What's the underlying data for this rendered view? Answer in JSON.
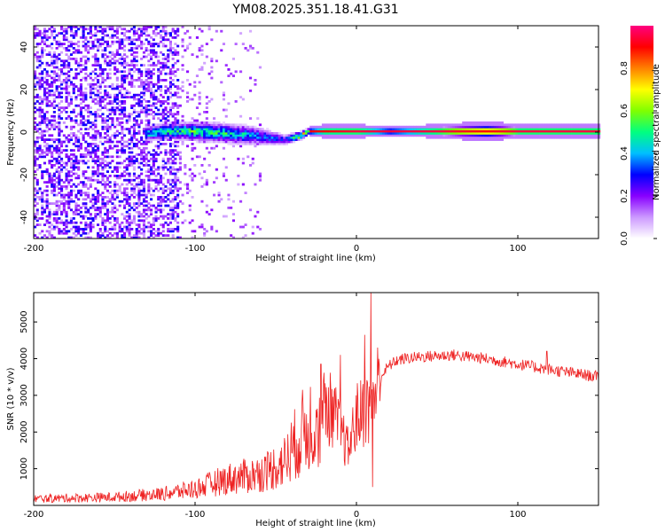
{
  "title": "YM08.2025.351.18.41.G31",
  "chart_data": [
    {
      "type": "heatmap",
      "title": "YM08.2025.351.18.41.G31",
      "xlabel": "Height of straight line (km)",
      "ylabel": "Frequency (Hz)",
      "xlim": [
        -200,
        150
      ],
      "ylim": [
        -50,
        50
      ],
      "xticks": [
        -200,
        -100,
        0,
        100
      ],
      "xtick_labels": [
        "-200",
        "-100",
        "0",
        "100"
      ],
      "yticks": [
        -40,
        -20,
        0,
        20,
        40
      ],
      "ytick_labels": [
        "-40",
        "-20",
        "0",
        "20",
        "40"
      ],
      "colorbar": {
        "label": "Normalized spectral amplitude",
        "range": [
          0,
          1
        ],
        "ticks": [
          0,
          0.2,
          0.4,
          0.6,
          0.8
        ],
        "tick_labels": [
          "0.0",
          "0.2",
          "0.4",
          "0.6",
          "0.8"
        ],
        "colors": [
          "#ffffff",
          "#cc99ff",
          "#8800ff",
          "#0000ff",
          "#00bfff",
          "#00ff80",
          "#80ff00",
          "#ffff00",
          "#ff8000",
          "#ff0000",
          "#ff0080"
        ]
      },
      "ridge": {
        "description_points_x": [
          -130,
          -120,
          -100,
          -80,
          -65,
          -55,
          -45,
          -35,
          -30,
          -20,
          0,
          20,
          50,
          80,
          100,
          120,
          150
        ],
        "center_freq": [
          -1,
          0,
          0,
          -1,
          -2,
          -3,
          -4,
          -2,
          0,
          0,
          0,
          0,
          0,
          0,
          0,
          0,
          0
        ],
        "half_width": [
          4,
          4,
          5,
          5,
          5,
          4,
          3,
          2,
          1.5,
          2,
          2,
          1.5,
          2,
          3,
          2,
          2,
          2
        ],
        "amplitude": [
          0.45,
          0.5,
          0.55,
          0.5,
          0.4,
          0.35,
          0.3,
          0.7,
          0.9,
          0.9,
          0.95,
          0.95,
          0.95,
          0.9,
          0.95,
          0.95,
          0.95
        ]
      }
    },
    {
      "type": "line",
      "xlabel": "Height of straight line (km)",
      "ylabel": "SNR (10 * v/v)",
      "xlim": [
        -200,
        150
      ],
      "ylim": [
        0,
        5800
      ],
      "xticks": [
        -200,
        -100,
        0,
        100
      ],
      "xtick_labels": [
        "-200",
        "-100",
        "0",
        "100"
      ],
      "yticks": [
        1000,
        2000,
        3000,
        4000,
        5000
      ],
      "ytick_labels": [
        "1000",
        "2000",
        "3000",
        "4000",
        "5000"
      ],
      "color": "#ee2222",
      "envelope_x": [
        -200,
        -150,
        -120,
        -100,
        -80,
        -60,
        -45,
        -35,
        -25,
        -15,
        -5,
        0,
        8,
        12,
        15,
        20,
        25,
        30,
        40,
        60,
        80,
        100,
        120,
        150
      ],
      "envelope_y": [
        200,
        250,
        350,
        500,
        800,
        950,
        1300,
        2100,
        2700,
        2600,
        1500,
        2400,
        2700,
        3100,
        3500,
        3800,
        3950,
        4000,
        4050,
        4100,
        4000,
        3850,
        3700,
        3500
      ],
      "spikes": [
        {
          "x": 9,
          "y": 5800
        },
        {
          "x": 10,
          "y": 500
        },
        {
          "x": -22,
          "y": 3850
        },
        {
          "x": -10,
          "y": 4100
        },
        {
          "x": 5,
          "y": 4650
        },
        {
          "x": 118,
          "y": 4200
        }
      ]
    }
  ]
}
